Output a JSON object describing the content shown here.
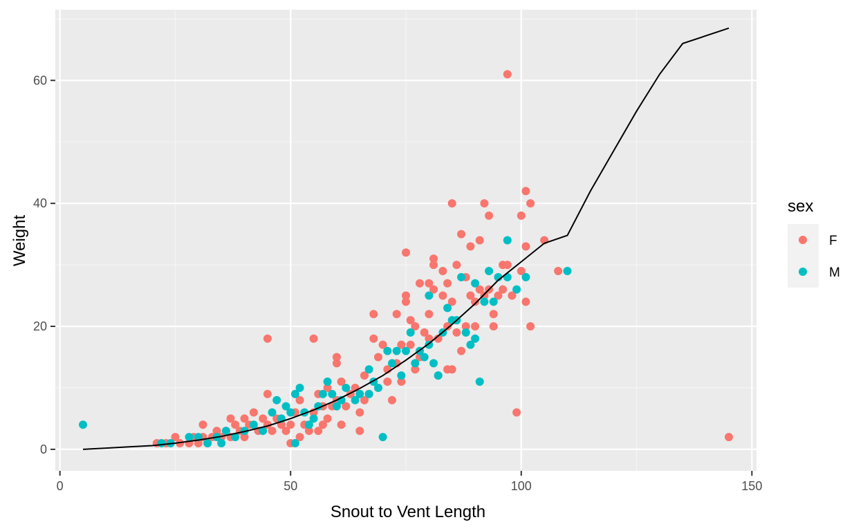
{
  "chart_data": {
    "type": "scatter",
    "title": "",
    "xlabel": "Snout to Vent Length",
    "ylabel": "Weight",
    "xlim": [
      -1,
      151
    ],
    "ylim": [
      -3.5,
      71.5
    ],
    "x_ticks": [
      0,
      50,
      100,
      150
    ],
    "y_ticks": [
      0,
      20,
      40,
      60
    ],
    "x_tick_labels": [
      "0",
      "50",
      "100",
      "150"
    ],
    "y_tick_labels": [
      "0",
      "20",
      "40",
      "60"
    ],
    "grid": true,
    "legend": {
      "title": "sex",
      "position": "right",
      "entries": [
        {
          "label": "F",
          "color": "#F8766D"
        },
        {
          "label": "M",
          "color": "#00BFC4"
        }
      ]
    },
    "series": [
      {
        "name": "F",
        "color": "#F8766D",
        "points": [
          [
            21,
            1
          ],
          [
            23,
            1
          ],
          [
            25,
            2
          ],
          [
            26,
            1
          ],
          [
            28,
            1
          ],
          [
            29,
            2
          ],
          [
            30,
            1
          ],
          [
            31,
            4
          ],
          [
            31,
            2
          ],
          [
            32,
            1
          ],
          [
            33,
            2
          ],
          [
            34,
            3
          ],
          [
            35,
            2
          ],
          [
            36,
            3
          ],
          [
            37,
            5
          ],
          [
            37,
            2
          ],
          [
            38,
            4
          ],
          [
            39,
            3
          ],
          [
            40,
            5
          ],
          [
            40,
            2
          ],
          [
            41,
            4
          ],
          [
            42,
            6
          ],
          [
            43,
            3
          ],
          [
            44,
            5
          ],
          [
            45,
            18
          ],
          [
            45,
            9
          ],
          [
            45,
            4
          ],
          [
            46,
            3
          ],
          [
            47,
            5
          ],
          [
            48,
            4
          ],
          [
            49,
            3
          ],
          [
            50,
            4
          ],
          [
            50,
            1
          ],
          [
            51,
            6
          ],
          [
            52,
            8
          ],
          [
            52,
            2
          ],
          [
            53,
            4
          ],
          [
            54,
            3
          ],
          [
            55,
            6
          ],
          [
            55,
            18
          ],
          [
            56,
            9
          ],
          [
            56,
            3
          ],
          [
            57,
            7
          ],
          [
            57,
            4
          ],
          [
            58,
            10
          ],
          [
            58,
            5
          ],
          [
            59,
            7
          ],
          [
            60,
            8
          ],
          [
            60,
            15
          ],
          [
            60,
            14
          ],
          [
            61,
            4
          ],
          [
            61,
            11
          ],
          [
            62,
            7
          ],
          [
            63,
            9
          ],
          [
            64,
            10
          ],
          [
            65,
            6
          ],
          [
            65,
            3
          ],
          [
            66,
            12
          ],
          [
            66,
            8
          ],
          [
            67,
            9
          ],
          [
            68,
            18
          ],
          [
            68,
            22
          ],
          [
            69,
            15
          ],
          [
            69,
            10
          ],
          [
            70,
            17
          ],
          [
            71,
            11
          ],
          [
            71,
            13
          ],
          [
            72,
            8
          ],
          [
            73,
            14
          ],
          [
            73,
            22
          ],
          [
            74,
            17
          ],
          [
            74,
            11
          ],
          [
            75,
            32
          ],
          [
            75,
            25
          ],
          [
            75,
            24
          ],
          [
            76,
            21
          ],
          [
            76,
            17
          ],
          [
            77,
            20
          ],
          [
            77,
            13
          ],
          [
            78,
            27
          ],
          [
            78,
            15
          ],
          [
            79,
            19
          ],
          [
            80,
            27
          ],
          [
            80,
            22
          ],
          [
            80,
            18
          ],
          [
            81,
            31
          ],
          [
            81,
            30
          ],
          [
            81,
            26
          ],
          [
            82,
            18
          ],
          [
            82,
            12
          ],
          [
            83,
            25
          ],
          [
            83,
            29
          ],
          [
            84,
            27
          ],
          [
            84,
            20
          ],
          [
            84,
            13
          ],
          [
            85,
            40
          ],
          [
            85,
            24
          ],
          [
            85,
            13
          ],
          [
            86,
            30
          ],
          [
            86,
            19
          ],
          [
            87,
            35
          ],
          [
            87,
            16
          ],
          [
            88,
            28
          ],
          [
            88,
            20
          ],
          [
            89,
            33
          ],
          [
            89,
            25
          ],
          [
            90,
            24
          ],
          [
            90,
            20
          ],
          [
            91,
            34
          ],
          [
            91,
            26
          ],
          [
            92,
            40
          ],
          [
            92,
            25
          ],
          [
            93,
            38
          ],
          [
            93,
            26
          ],
          [
            94,
            22
          ],
          [
            94,
            20
          ],
          [
            95,
            25
          ],
          [
            96,
            30
          ],
          [
            96,
            26
          ],
          [
            97,
            61
          ],
          [
            97,
            30
          ],
          [
            98,
            25
          ],
          [
            99,
            6
          ],
          [
            100,
            38
          ],
          [
            100,
            29
          ],
          [
            101,
            42
          ],
          [
            101,
            33
          ],
          [
            101,
            24
          ],
          [
            102,
            40
          ],
          [
            102,
            20
          ],
          [
            105,
            34
          ],
          [
            108,
            29
          ],
          [
            145,
            2
          ]
        ]
      },
      {
        "name": "M",
        "color": "#00BFC4",
        "points": [
          [
            5,
            4
          ],
          [
            22,
            1
          ],
          [
            24,
            1
          ],
          [
            28,
            2
          ],
          [
            30,
            2
          ],
          [
            32,
            1
          ],
          [
            34,
            2
          ],
          [
            35,
            1
          ],
          [
            36,
            3
          ],
          [
            38,
            2
          ],
          [
            40,
            3
          ],
          [
            42,
            4
          ],
          [
            44,
            3
          ],
          [
            46,
            6
          ],
          [
            47,
            8
          ],
          [
            48,
            5
          ],
          [
            49,
            7
          ],
          [
            50,
            6
          ],
          [
            51,
            9
          ],
          [
            51,
            1
          ],
          [
            52,
            10
          ],
          [
            53,
            6
          ],
          [
            54,
            4
          ],
          [
            55,
            5
          ],
          [
            56,
            7
          ],
          [
            57,
            9
          ],
          [
            58,
            11
          ],
          [
            59,
            9
          ],
          [
            60,
            7
          ],
          [
            61,
            8
          ],
          [
            62,
            10
          ],
          [
            64,
            8
          ],
          [
            65,
            9
          ],
          [
            67,
            9
          ],
          [
            67,
            13
          ],
          [
            68,
            11
          ],
          [
            69,
            10
          ],
          [
            70,
            2
          ],
          [
            71,
            16
          ],
          [
            72,
            14
          ],
          [
            73,
            16
          ],
          [
            74,
            12
          ],
          [
            75,
            16
          ],
          [
            76,
            19
          ],
          [
            77,
            14
          ],
          [
            78,
            16
          ],
          [
            79,
            15
          ],
          [
            80,
            25
          ],
          [
            80,
            17
          ],
          [
            81,
            14
          ],
          [
            82,
            12
          ],
          [
            83,
            19
          ],
          [
            84,
            23
          ],
          [
            85,
            21
          ],
          [
            86,
            21
          ],
          [
            87,
            28
          ],
          [
            88,
            19
          ],
          [
            89,
            17
          ],
          [
            90,
            27
          ],
          [
            90,
            18
          ],
          [
            91,
            11
          ],
          [
            92,
            24
          ],
          [
            93,
            29
          ],
          [
            94,
            24
          ],
          [
            95,
            28
          ],
          [
            97,
            34
          ],
          [
            97,
            28
          ],
          [
            99,
            26
          ],
          [
            101,
            28
          ],
          [
            110,
            29
          ]
        ]
      }
    ],
    "fit_line": {
      "color": "#000000",
      "points": [
        [
          5,
          0
        ],
        [
          10,
          0.2
        ],
        [
          15,
          0.4
        ],
        [
          20,
          0.6
        ],
        [
          25,
          1
        ],
        [
          30,
          1.5
        ],
        [
          35,
          2.1
        ],
        [
          40,
          2.9
        ],
        [
          45,
          3.8
        ],
        [
          50,
          5
        ],
        [
          55,
          6.4
        ],
        [
          60,
          8
        ],
        [
          65,
          9.9
        ],
        [
          70,
          12
        ],
        [
          75,
          14.5
        ],
        [
          80,
          17.2
        ],
        [
          85,
          20.3
        ],
        [
          90,
          23.7
        ],
        [
          95,
          27.5
        ],
        [
          100,
          30.5
        ],
        [
          105,
          33.5
        ],
        [
          110,
          34.8
        ],
        [
          115,
          42
        ],
        [
          120,
          48.5
        ],
        [
          125,
          55
        ],
        [
          130,
          61
        ],
        [
          135,
          66
        ],
        [
          145,
          68.5
        ]
      ]
    }
  }
}
